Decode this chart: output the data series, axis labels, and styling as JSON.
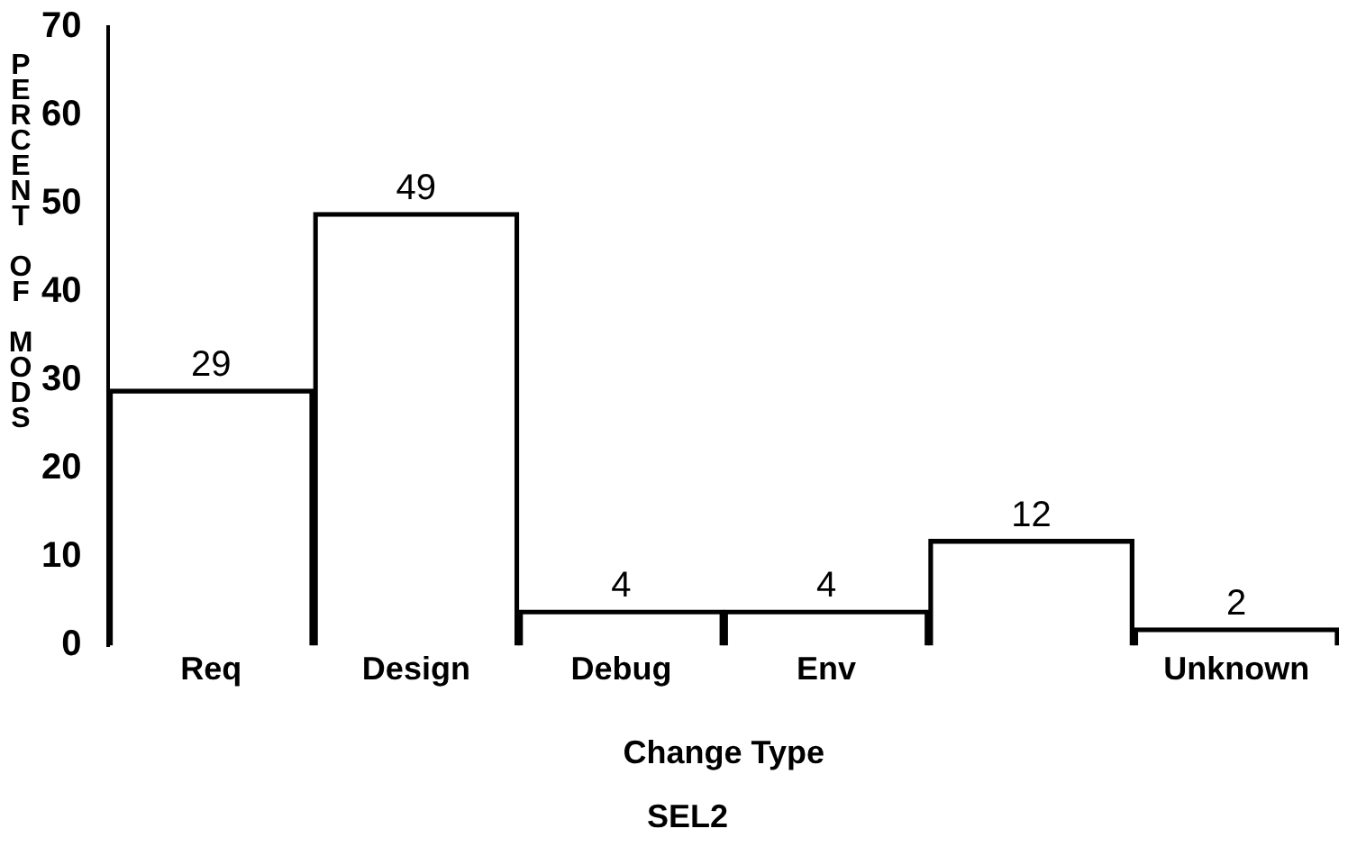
{
  "chart_data": {
    "type": "bar",
    "title": "SEL2",
    "xlabel": "Change Type",
    "ylabel": "PERCENT OF MODS",
    "categories": [
      "Req",
      "Design",
      "Debug",
      "Env",
      null,
      "Unknown"
    ],
    "values": [
      29,
      49,
      4,
      4,
      12,
      2
    ],
    "color": "#000000",
    "ylim": [
      0,
      70
    ],
    "yticks": [
      0,
      10,
      20,
      30,
      40,
      50,
      60,
      70
    ],
    "grid": false,
    "legend": false,
    "data_labels": true
  }
}
